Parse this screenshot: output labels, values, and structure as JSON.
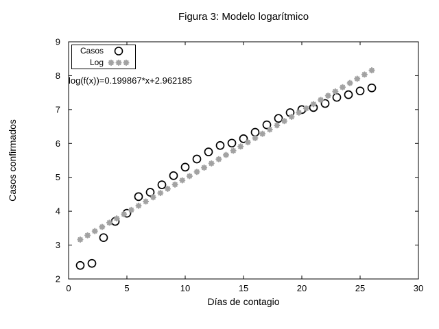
{
  "figure": {
    "title": "Figura 3: Modelo logarítmico",
    "xlabel": "Días de contagio",
    "ylabel": "Casos confirmados",
    "annotation": "log(f(x))=0.199867*x+2.962185"
  },
  "legend": {
    "entries": [
      {
        "label": "Casos",
        "marker": "open-circle"
      },
      {
        "label": "Log",
        "marker": "gray-asterisk"
      }
    ]
  },
  "colors": {
    "foreground": "#000000",
    "fit_gray": "#a2a2a2",
    "background": "#ffffff"
  },
  "chart_data": {
    "type": "scatter",
    "title": "Figura 3: Modelo logarítmico",
    "xlabel": "Días de contagio",
    "ylabel": "Casos confirmados",
    "xlim": [
      0,
      30
    ],
    "ylim": [
      2,
      9
    ],
    "xticks": [
      0,
      5,
      10,
      15,
      20,
      25,
      30
    ],
    "yticks": [
      2,
      3,
      4,
      5,
      6,
      7,
      8,
      9
    ],
    "grid": false,
    "legend_position": "top-left-inside",
    "annotation": "log(f(x))=0.199867*x+2.962185",
    "series": [
      {
        "name": "Casos",
        "plot_style": "points",
        "marker": "open-circle",
        "color": "#000000",
        "x": [
          1,
          2,
          3,
          4,
          5,
          6,
          7,
          8,
          9,
          10,
          11,
          12,
          13,
          14,
          15,
          16,
          17,
          18,
          19,
          20,
          21,
          22,
          23,
          24,
          25,
          26
        ],
        "y": [
          2.4,
          2.46,
          3.22,
          3.7,
          3.94,
          4.43,
          4.56,
          4.78,
          5.05,
          5.3,
          5.54,
          5.75,
          5.94,
          6.01,
          6.14,
          6.33,
          6.55,
          6.74,
          6.91,
          7.0,
          7.06,
          7.18,
          7.36,
          7.44,
          7.55,
          7.64
        ]
      },
      {
        "name": "Log",
        "plot_style": "dotted-line",
        "marker": "gray-asterisk",
        "color": "#a2a2a2",
        "fit": {
          "slope": 0.199867,
          "intercept": 2.962185,
          "x_start": 1,
          "x_end": 26,
          "samples": 41
        }
      }
    ]
  }
}
